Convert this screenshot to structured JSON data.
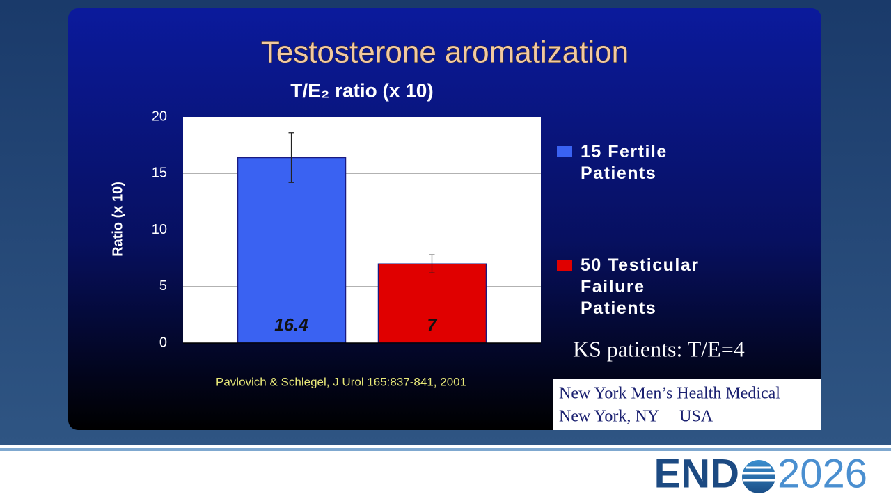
{
  "slide_title": "Testosterone aromatization",
  "chart_data": {
    "type": "bar",
    "subtitle": "T/E₂ ratio (x 10)",
    "y_label": "Ratio (x 10)",
    "categories": [
      null,
      null
    ],
    "series": [
      {
        "name": "15 Fertile Patients",
        "color": "#3a62f2",
        "values": [
          16.4,
          null
        ],
        "errors": [
          2.2,
          null
        ]
      },
      {
        "name": "50 Testicular Failure Patients",
        "color": "#e00000",
        "values": [
          null,
          7
        ],
        "errors": [
          null,
          0.8
        ]
      }
    ],
    "ylim": [
      0,
      20
    ],
    "yticks": [
      0,
      5,
      10,
      15,
      20
    ],
    "grid": true
  },
  "note": "KS patients: T/E=4",
  "citation": "Pavlovich & Schlegel, J Urol 165:837-841,  2001",
  "watermark": [
    "New York Men’s Health Medical",
    "New York, NY     USA"
  ],
  "logo": {
    "left": "END",
    "right": "2026"
  }
}
